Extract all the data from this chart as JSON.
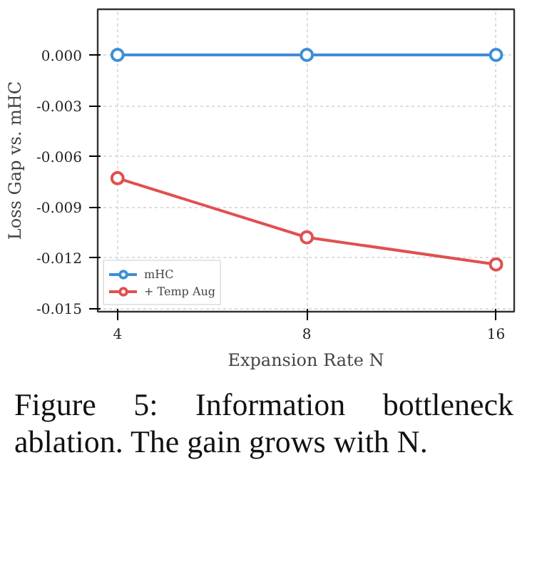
{
  "chart_data": {
    "type": "line",
    "xlabel": "Expansion Rate N",
    "ylabel": "Loss Gap vs. mHC",
    "x": [
      4,
      8,
      16
    ],
    "log": "x",
    "xlim": [
      3.72,
      17.1
    ],
    "xticks": [
      4,
      8,
      16
    ],
    "ylim": [
      -0.0152,
      0.0027
    ],
    "yticks": [
      {
        "value": 0,
        "label": "0.000"
      },
      {
        "value": -0.003,
        "label": "-0.003"
      },
      {
        "value": -0.006,
        "label": "-0.006"
      },
      {
        "value": -0.009,
        "label": "-0.009"
      },
      {
        "value": -0.012,
        "label": "-0.012"
      },
      {
        "value": -0.015,
        "label": "-0.015"
      }
    ],
    "series": [
      {
        "name": "mHC",
        "color": "#3d8fd6",
        "values": [
          0,
          0,
          0
        ]
      },
      {
        "name": "+ Temp Aug",
        "color": "#e05050",
        "values": [
          -0.0073,
          -0.0108,
          -0.0124
        ]
      }
    ],
    "marker": "circle",
    "line_style": "solid",
    "grid": true,
    "legend": "bottom left",
    "annotations": [
      "Figure 5: Information bottleneck ablation. The gain grows with N."
    ]
  }
}
